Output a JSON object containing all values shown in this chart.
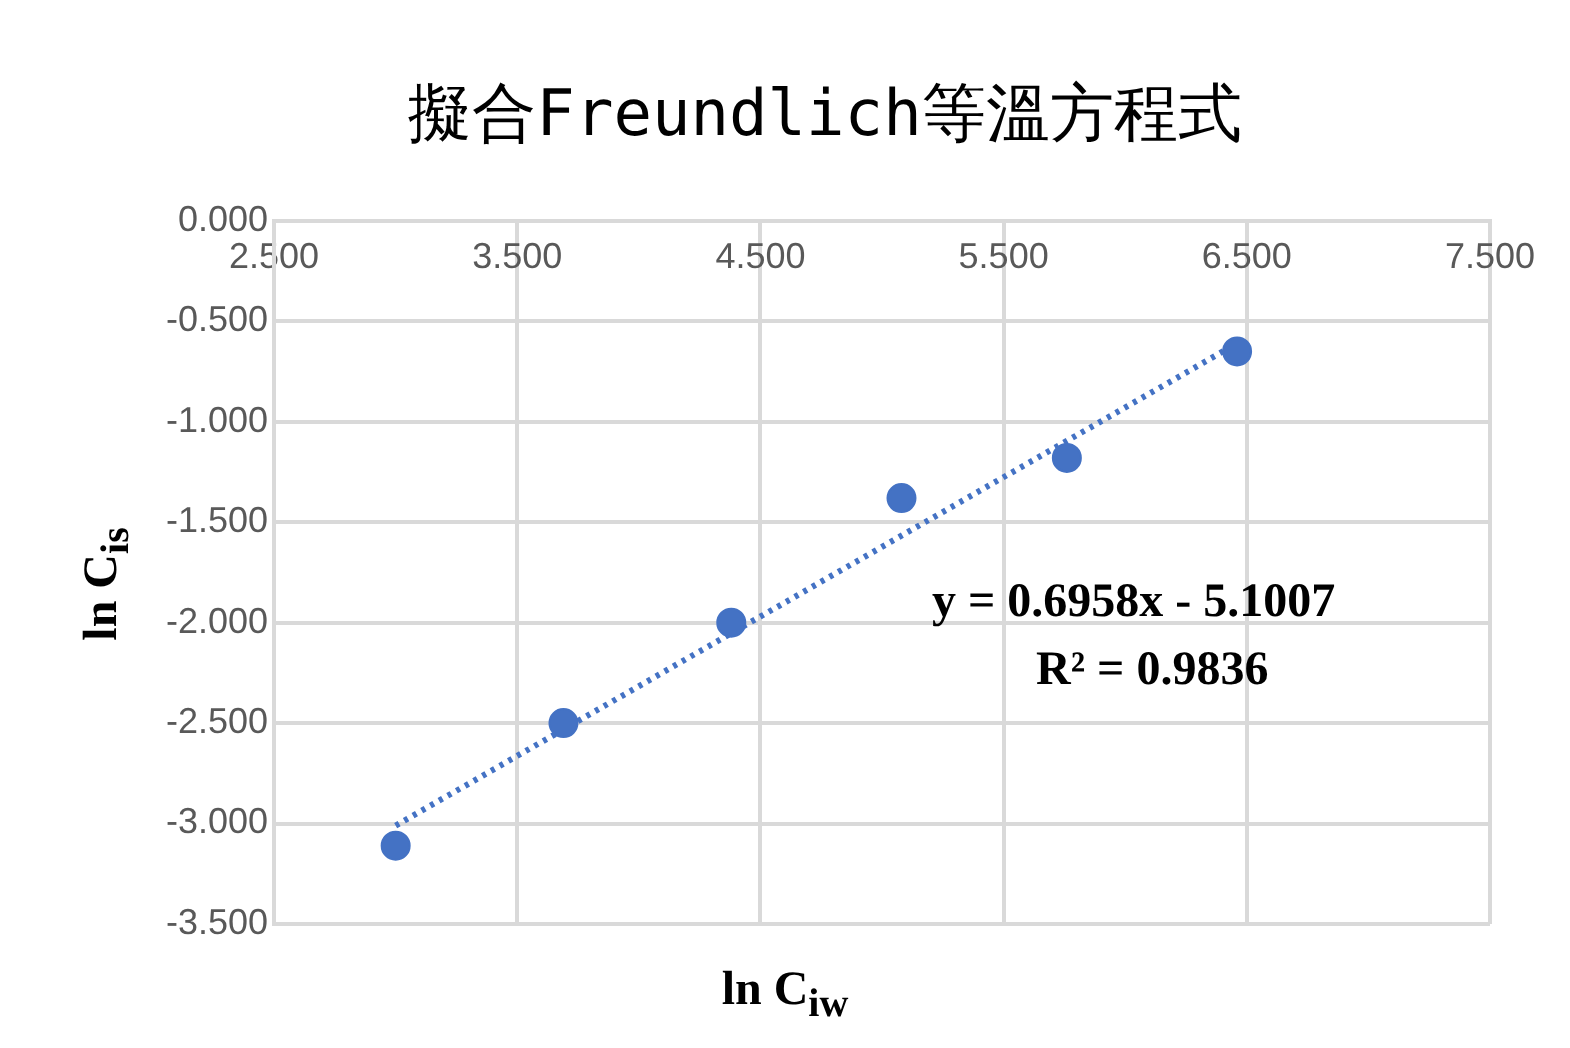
{
  "chart_data": {
    "type": "scatter",
    "title": "擬合Freundlich等溫方程式",
    "xlabel": "ln C$_{iw}$",
    "ylabel": "ln C$_{is}$",
    "series": [
      {
        "color": "#4472c4",
        "x": [
          3.0,
          3.69,
          4.38,
          5.08,
          5.76,
          6.46
        ],
        "values": [
          -3.11,
          -2.5,
          -2.0,
          -1.38,
          -1.18,
          -0.65
        ]
      },
      {
        "type": "line",
        "color": "#4472c4",
        "line_style": "dotted",
        "marker": "none",
        "x": [
          3.0,
          6.46
        ],
        "values": [
          -3.01,
          -0.61
        ]
      }
    ],
    "xlim": [
      2.5,
      7.5
    ],
    "xticks": [
      {
        "value": 2.5,
        "label": "2.500"
      },
      {
        "value": 3.5,
        "label": "3.500"
      },
      {
        "value": 4.5,
        "label": "4.500"
      },
      {
        "value": 5.5,
        "label": "5.500"
      },
      {
        "value": 6.5,
        "label": "6.500"
      },
      {
        "value": 7.5,
        "label": "7.500"
      }
    ],
    "ylim": [
      -3.5,
      0
    ],
    "yticks": [
      {
        "value": -3.5,
        "label": "-3.500"
      },
      {
        "value": -3,
        "label": "-3.000"
      },
      {
        "value": -2.5,
        "label": "-2.500"
      },
      {
        "value": -2,
        "label": "-2.000"
      },
      {
        "value": -1.5,
        "label": "-1.500"
      },
      {
        "value": -1,
        "label": "-1.000"
      },
      {
        "value": -0.5,
        "label": "-0.500"
      },
      {
        "value": 0,
        "label": "0.000"
      }
    ],
    "grid": true,
    "legend": false,
    "marker": "circle",
    "annotations": [
      "y = 0.6958x - 5.1007",
      "R² = 0.9836"
    ]
  }
}
